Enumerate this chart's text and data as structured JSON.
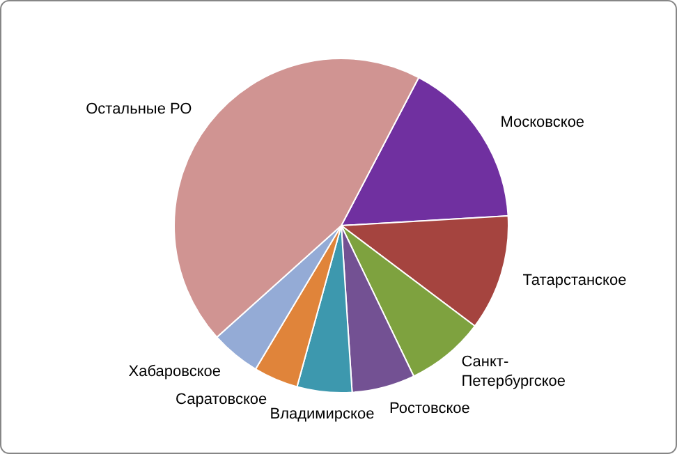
{
  "chart_data": {
    "type": "pie",
    "categories": [
      "Московское",
      "Татарстанское",
      "Санкт-Петербургское",
      "Ростовское",
      "Владимирское",
      "Саратовское",
      "Хабаровское",
      "Остальные РО"
    ],
    "values": [
      16.4,
      11.2,
      7.6,
      6.1,
      5.3,
      4.3,
      4.8,
      44.3
    ],
    "colors": [
      "#7030a0",
      "#a5443f",
      "#7ea23f",
      "#735193",
      "#3d98ae",
      "#e0843a",
      "#94abd6",
      "#d09492"
    ]
  }
}
